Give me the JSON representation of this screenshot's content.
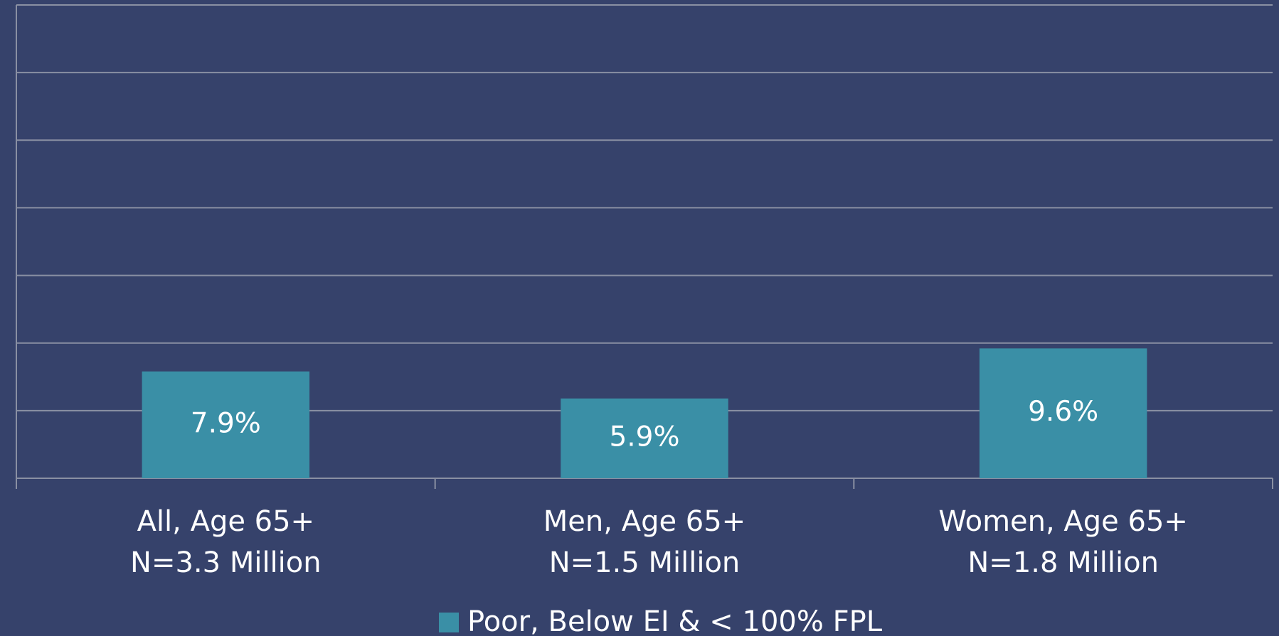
{
  "chart_data": {
    "type": "bar",
    "categories": [
      [
        "All, Age 65+",
        "N=3.3 Million"
      ],
      [
        "Men, Age 65+",
        "N=1.5 Million"
      ],
      [
        "Women, Age 65+",
        "N=1.8 Million"
      ]
    ],
    "series": [
      {
        "name": "Poor, Below EI & < 100% FPL",
        "color": "#3a8fa6",
        "values": [
          7.9,
          5.9,
          9.6
        ],
        "value_labels": [
          "7.9%",
          "5.9%",
          "9.6%"
        ]
      }
    ],
    "ylim": [
      0,
      35
    ],
    "yticks": [
      0,
      5,
      10,
      15,
      20,
      25,
      30,
      35
    ],
    "grid": true,
    "legend": "bottom"
  }
}
